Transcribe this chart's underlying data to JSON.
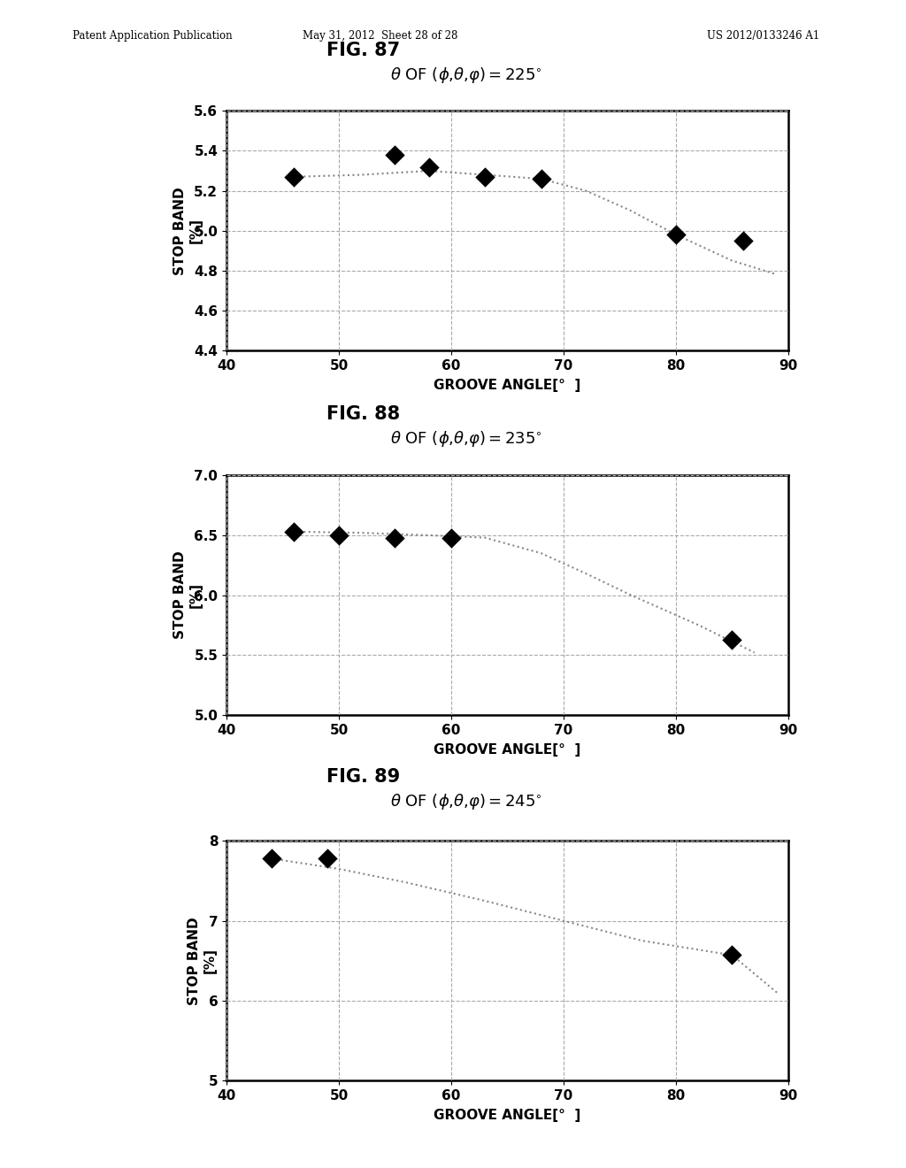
{
  "header_left": "Patent Application Publication",
  "header_mid": "May 31, 2012  Sheet 28 of 28",
  "header_right": "US 2012/0133246 A1",
  "fig87": {
    "title": "FIG. 87",
    "subtitle": "θ OF (φ,θ,φ)=225°",
    "xlabel": "GROOVE ANGLE[°  ]",
    "ylabel_line1": "STOP BAND",
    "ylabel_line2": "[%]",
    "xlim": [
      40,
      90
    ],
    "ylim": [
      4.4,
      5.6
    ],
    "xticks": [
      40,
      50,
      60,
      70,
      80,
      90
    ],
    "yticks": [
      4.4,
      4.6,
      4.8,
      5.0,
      5.2,
      5.4,
      5.6
    ],
    "scatter_x": [
      46,
      55,
      58,
      63,
      68,
      80,
      86
    ],
    "scatter_y": [
      5.27,
      5.38,
      5.32,
      5.27,
      5.26,
      4.98,
      4.95
    ],
    "trend_x": [
      46,
      52,
      58,
      63,
      68,
      72,
      76,
      80,
      85,
      89
    ],
    "trend_y": [
      5.27,
      5.28,
      5.3,
      5.28,
      5.26,
      5.2,
      5.1,
      4.98,
      4.85,
      4.78
    ]
  },
  "fig88": {
    "title": "FIG. 88",
    "subtitle": "θ OF (φ,θ,φ)=235°",
    "xlabel": "GROOVE ANGLE[°  ]",
    "ylabel_line1": "STOP BAND",
    "ylabel_line2": "[%]",
    "xlim": [
      40,
      90
    ],
    "ylim": [
      5.0,
      7.0
    ],
    "xticks": [
      40,
      50,
      60,
      70,
      80,
      90
    ],
    "yticks": [
      5.0,
      5.5,
      6.0,
      6.5,
      7.0
    ],
    "scatter_x": [
      46,
      50,
      55,
      60,
      85
    ],
    "scatter_y": [
      6.53,
      6.5,
      6.48,
      6.48,
      5.63
    ],
    "trend_x": [
      46,
      52,
      58,
      63,
      68,
      72,
      76,
      82,
      87
    ],
    "trend_y": [
      6.53,
      6.52,
      6.5,
      6.48,
      6.35,
      6.18,
      6.0,
      5.75,
      5.52
    ]
  },
  "fig89": {
    "title": "FIG. 89",
    "subtitle": "θ OF (φ,θ,φ)=245°",
    "xlabel": "GROOVE ANGLE[°  ]",
    "ylabel_line1": "STOP BAND",
    "ylabel_line2": "[%]",
    "xlim": [
      40,
      90
    ],
    "ylim": [
      5.0,
      8.0
    ],
    "xticks": [
      40,
      50,
      60,
      70,
      80,
      90
    ],
    "yticks": [
      5,
      6,
      7,
      8
    ],
    "scatter_x": [
      44,
      49,
      85
    ],
    "scatter_y": [
      7.78,
      7.78,
      6.57
    ],
    "trend_x": [
      44,
      50,
      56,
      63,
      70,
      77,
      85,
      89
    ],
    "trend_y": [
      7.78,
      7.65,
      7.48,
      7.25,
      7.0,
      6.75,
      6.57,
      6.1
    ]
  },
  "background_color": "#ffffff",
  "marker_color": "black",
  "marker_size": 130,
  "trend_color": "#888888",
  "grid_color": "#aaaaaa",
  "grid_style": "--"
}
